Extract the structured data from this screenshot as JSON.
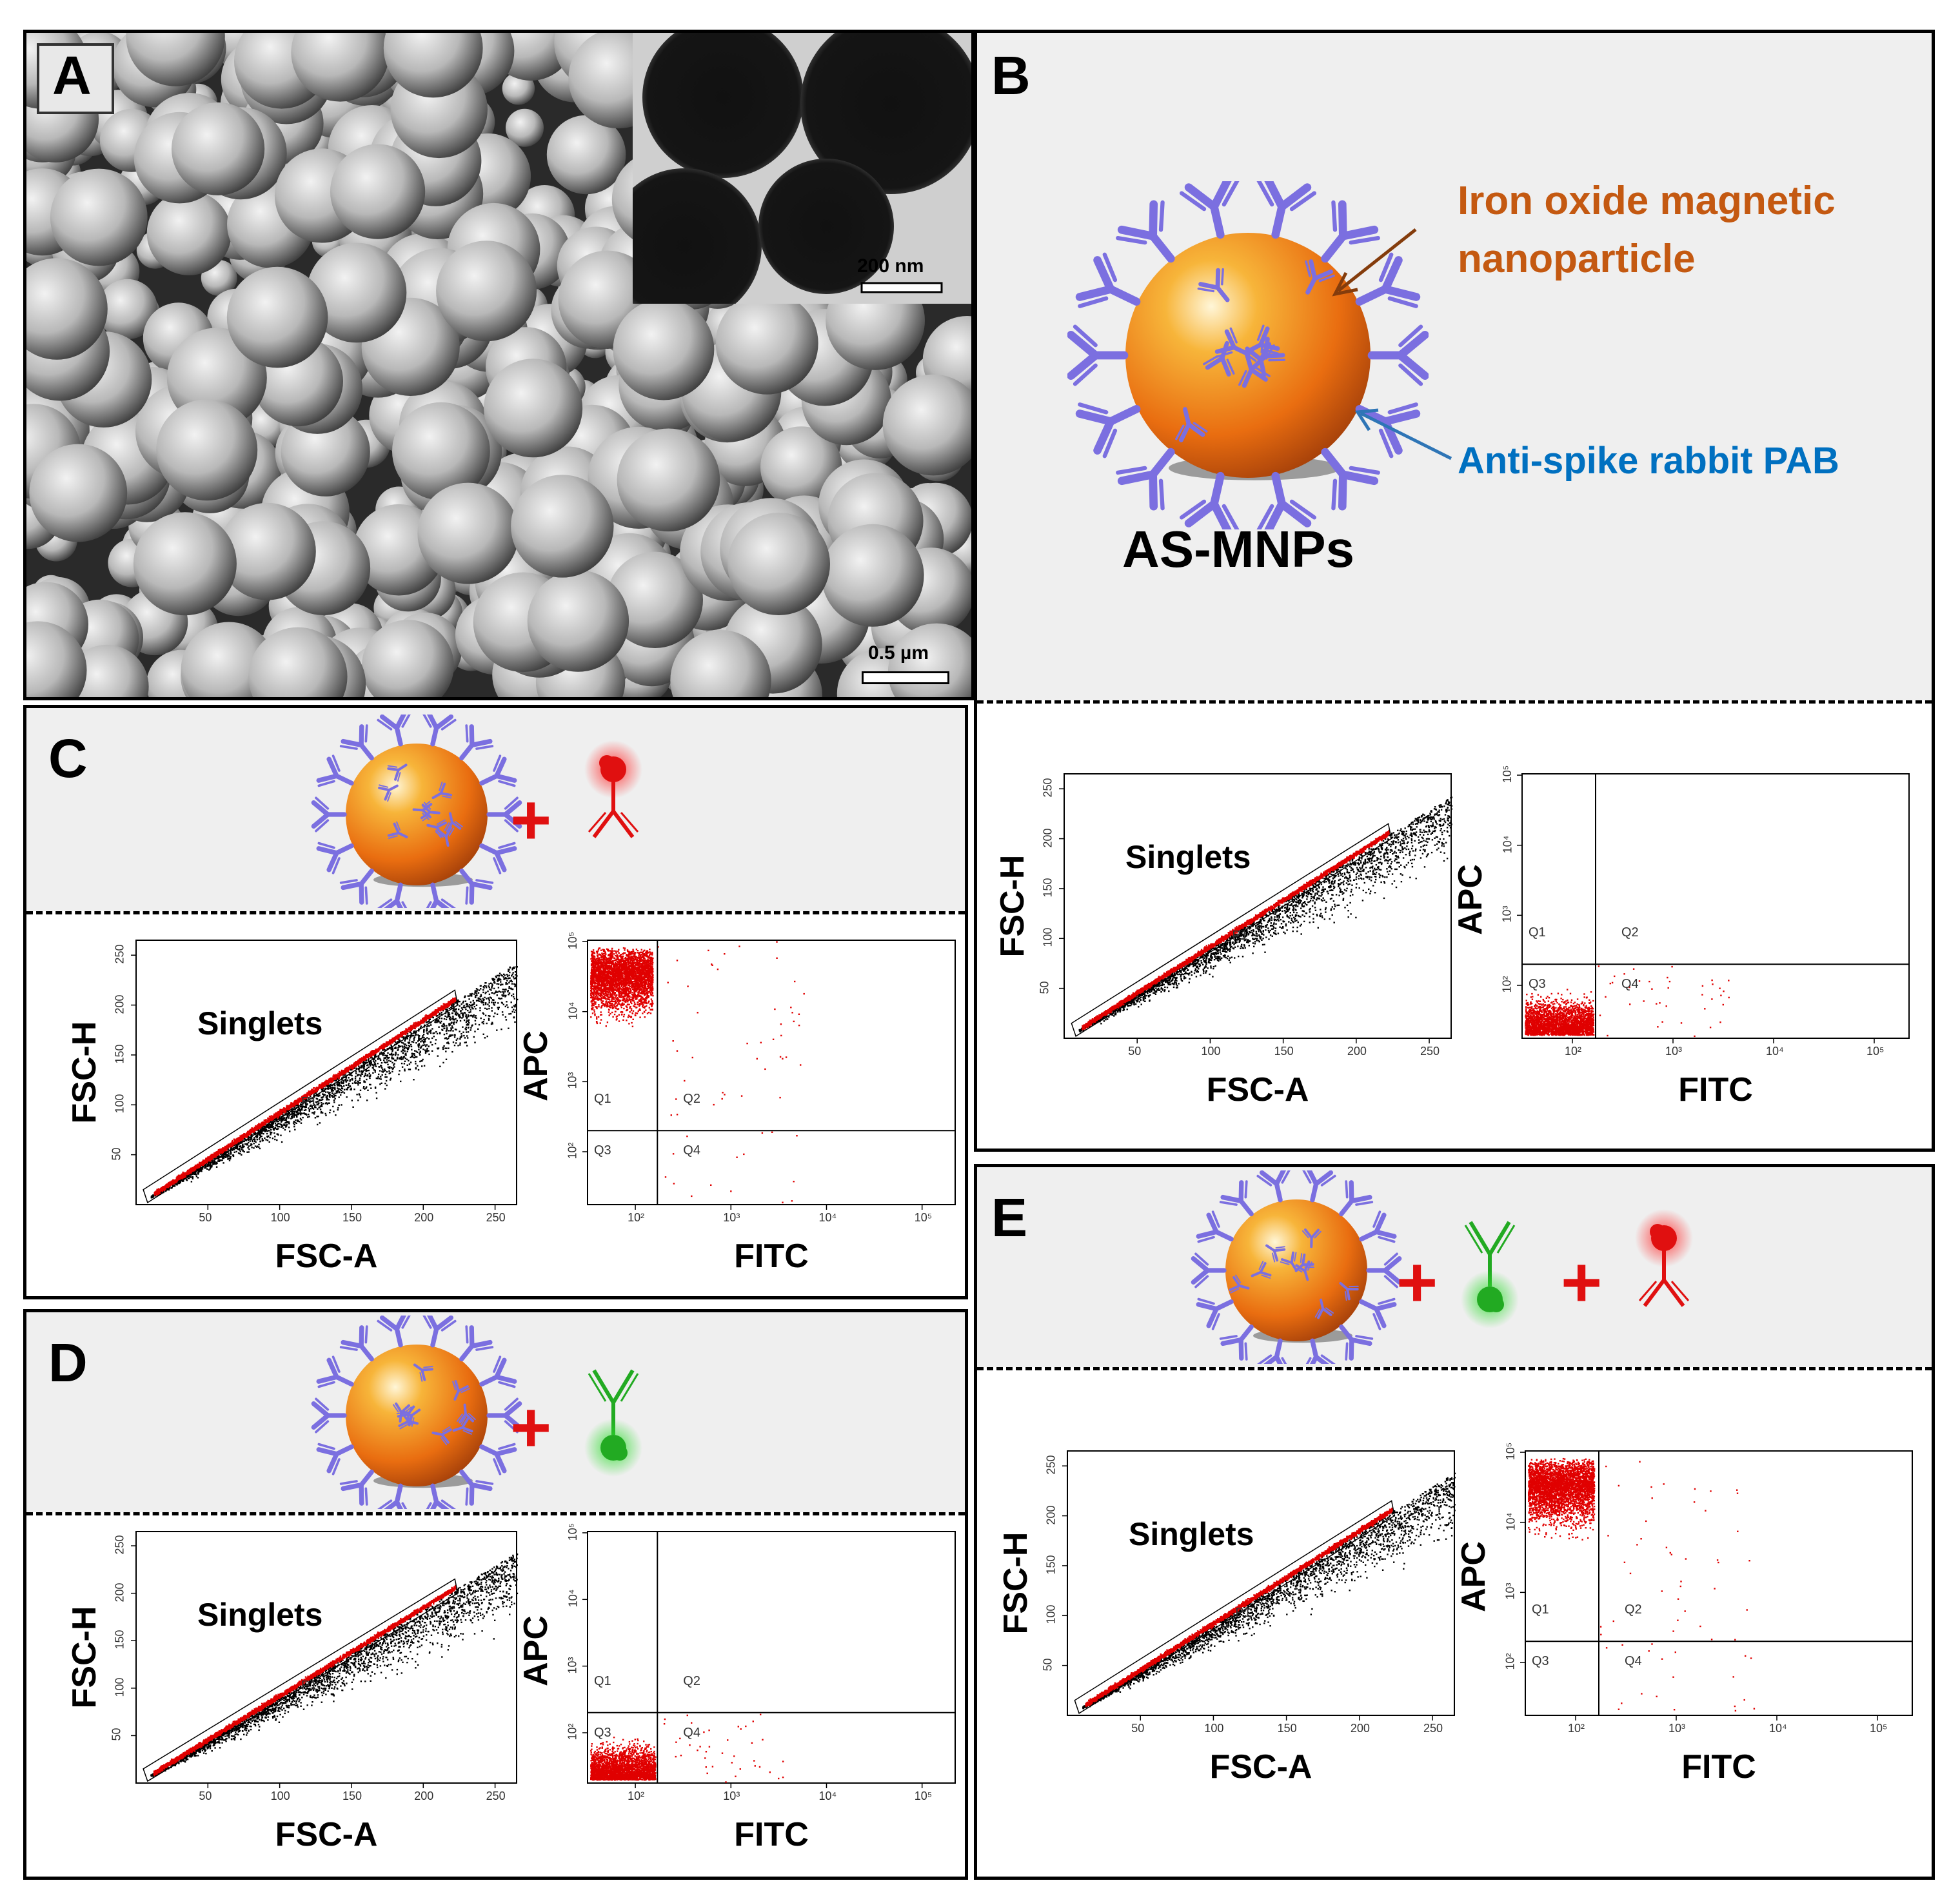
{
  "panels": {
    "A": {
      "letter": "A",
      "scale_main": "0.5 µm",
      "scale_inset": "200 nm"
    },
    "B": {
      "letter": "B",
      "label_iron": "Iron oxide magnetic nanoparticle",
      "label_iron_line1": "Iron oxide magnetic",
      "label_iron_line2": "nanoparticle",
      "label_pab": "Anti-spike rabbit PAB",
      "title": "AS-MNPs",
      "colors": {
        "iron": "#c45911",
        "pab": "#0070c0",
        "arrow_iron": "#843c0c",
        "arrow_pab": "#2e75b6"
      }
    },
    "C": {
      "letter": "C",
      "plus": "+"
    },
    "D": {
      "letter": "D",
      "plus": "+"
    },
    "E": {
      "letter": "E",
      "plus": "+"
    }
  },
  "plots": {
    "fsc": {
      "xlabel": "FSC-A",
      "ylabel": "FSC-H",
      "gate": "Singlets",
      "gate_id": "P1",
      "xticks": [
        "50",
        "100",
        "150",
        "200",
        "250"
      ],
      "yticks": [
        "50",
        "100",
        "150",
        "200",
        "250"
      ]
    },
    "apc": {
      "xlabel": "FITC",
      "ylabel": "APC",
      "quadrants": [
        "Q1",
        "Q2",
        "Q3",
        "Q4"
      ],
      "xticks": [
        "10²",
        "10³",
        "10⁴",
        "10⁵"
      ],
      "yticks": [
        "10²",
        "10³",
        "10⁴",
        "10⁵"
      ]
    }
  },
  "colors": {
    "sphere": "#f07a1a",
    "antibody": "#7b6fe0",
    "red": "#e01010",
    "green": "#22aa22",
    "points_gate": "#e00000",
    "points_other": "#000000"
  }
}
